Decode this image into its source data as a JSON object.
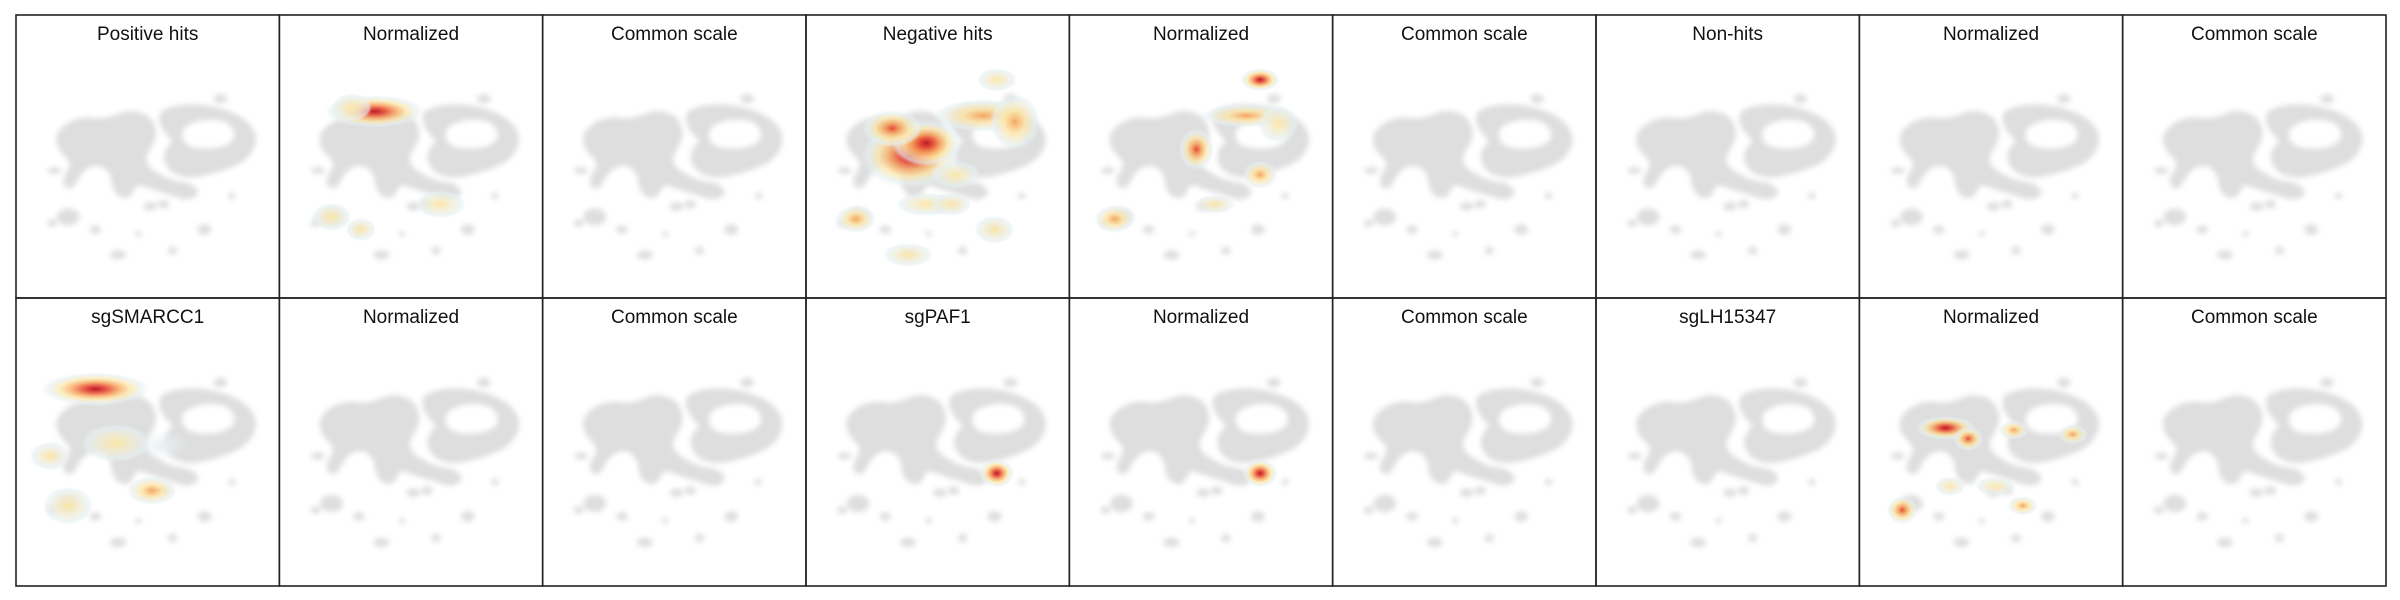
{
  "chart_data": {
    "type": "heatmap",
    "description_units": "normalized embedding coordinates (0-1, origin top-left of each panel)",
    "colormap": [
      "#e6f0f3",
      "#fde6a6",
      "#f6a45c",
      "#e6452d",
      "#b5101e"
    ],
    "background_color": "#dedede",
    "panels": [
      {
        "title": "Positive hits",
        "hotspots": []
      },
      {
        "title": "Normalized",
        "hotspots": [
          {
            "x": 0.34,
            "y": 0.22,
            "sx": 0.1,
            "sy": 0.035,
            "v": 1.0
          },
          {
            "x": 0.24,
            "y": 0.2,
            "sx": 0.04,
            "sy": 0.03,
            "v": 0.35
          },
          {
            "x": 0.15,
            "y": 0.72,
            "sx": 0.04,
            "sy": 0.03,
            "v": 0.35
          },
          {
            "x": 0.63,
            "y": 0.66,
            "sx": 0.05,
            "sy": 0.03,
            "v": 0.2
          },
          {
            "x": 0.28,
            "y": 0.78,
            "sx": 0.03,
            "sy": 0.025,
            "v": 0.15
          }
        ]
      },
      {
        "title": "Common scale",
        "hotspots": []
      },
      {
        "title": "Negative hits",
        "hotspots": [
          {
            "x": 0.38,
            "y": 0.43,
            "sx": 0.1,
            "sy": 0.07,
            "v": 0.9
          },
          {
            "x": 0.45,
            "y": 0.37,
            "sx": 0.07,
            "sy": 0.05,
            "v": 1.0
          },
          {
            "x": 0.3,
            "y": 0.3,
            "sx": 0.06,
            "sy": 0.04,
            "v": 0.7
          },
          {
            "x": 0.7,
            "y": 0.24,
            "sx": 0.1,
            "sy": 0.035,
            "v": 0.55
          },
          {
            "x": 0.84,
            "y": 0.27,
            "sx": 0.05,
            "sy": 0.06,
            "v": 0.45
          },
          {
            "x": 0.58,
            "y": 0.52,
            "sx": 0.05,
            "sy": 0.03,
            "v": 0.35
          },
          {
            "x": 0.45,
            "y": 0.66,
            "sx": 0.06,
            "sy": 0.025,
            "v": 0.3
          },
          {
            "x": 0.14,
            "y": 0.73,
            "sx": 0.04,
            "sy": 0.03,
            "v": 0.45
          },
          {
            "x": 0.76,
            "y": 0.07,
            "sx": 0.04,
            "sy": 0.025,
            "v": 0.25
          },
          {
            "x": 0.56,
            "y": 0.66,
            "sx": 0.04,
            "sy": 0.025,
            "v": 0.3
          },
          {
            "x": 0.37,
            "y": 0.9,
            "sx": 0.05,
            "sy": 0.025,
            "v": 0.2
          },
          {
            "x": 0.75,
            "y": 0.78,
            "sx": 0.04,
            "sy": 0.03,
            "v": 0.15
          }
        ]
      },
      {
        "title": "Normalized",
        "hotspots": [
          {
            "x": 0.76,
            "y": 0.07,
            "sx": 0.04,
            "sy": 0.025,
            "v": 1.0
          },
          {
            "x": 0.48,
            "y": 0.4,
            "sx": 0.035,
            "sy": 0.045,
            "v": 0.75
          },
          {
            "x": 0.76,
            "y": 0.52,
            "sx": 0.035,
            "sy": 0.03,
            "v": 0.6
          },
          {
            "x": 0.7,
            "y": 0.24,
            "sx": 0.09,
            "sy": 0.025,
            "v": 0.4
          },
          {
            "x": 0.12,
            "y": 0.73,
            "sx": 0.04,
            "sy": 0.03,
            "v": 0.45
          },
          {
            "x": 0.84,
            "y": 0.28,
            "sx": 0.04,
            "sy": 0.04,
            "v": 0.3
          },
          {
            "x": 0.56,
            "y": 0.66,
            "sx": 0.04,
            "sy": 0.02,
            "v": 0.2
          }
        ]
      },
      {
        "title": "Common scale",
        "hotspots": []
      },
      {
        "title": "Non-hits",
        "hotspots": []
      },
      {
        "title": "Normalized",
        "hotspots": []
      },
      {
        "title": "Common scale",
        "hotspots": []
      },
      {
        "title": "sgSMARCC1",
        "hotspots": [
          {
            "x": 0.27,
            "y": 0.19,
            "sx": 0.11,
            "sy": 0.035,
            "v": 1.0
          },
          {
            "x": 0.52,
            "y": 0.66,
            "sx": 0.05,
            "sy": 0.03,
            "v": 0.55
          },
          {
            "x": 0.15,
            "y": 0.73,
            "sx": 0.05,
            "sy": 0.04,
            "v": 0.25
          },
          {
            "x": 0.07,
            "y": 0.5,
            "sx": 0.04,
            "sy": 0.03,
            "v": 0.2
          },
          {
            "x": 0.36,
            "y": 0.44,
            "sx": 0.07,
            "sy": 0.04,
            "v": 0.15
          },
          {
            "x": 0.57,
            "y": 0.45,
            "sx": 0.05,
            "sy": 0.03,
            "v": 0.1
          }
        ]
      },
      {
        "title": "Normalized",
        "hotspots": []
      },
      {
        "title": "Common scale",
        "hotspots": []
      },
      {
        "title": "sgPAF1",
        "hotspots": [
          {
            "x": 0.76,
            "y": 0.58,
            "sx": 0.035,
            "sy": 0.03,
            "v": 1.0
          }
        ]
      },
      {
        "title": "Normalized",
        "hotspots": [
          {
            "x": 0.76,
            "y": 0.58,
            "sx": 0.035,
            "sy": 0.03,
            "v": 1.0
          }
        ]
      },
      {
        "title": "Common scale",
        "hotspots": []
      },
      {
        "title": "sgLH15347",
        "hotspots": []
      },
      {
        "title": "Normalized",
        "hotspots": [
          {
            "x": 0.3,
            "y": 0.37,
            "sx": 0.06,
            "sy": 0.025,
            "v": 0.95
          },
          {
            "x": 0.4,
            "y": 0.42,
            "sx": 0.03,
            "sy": 0.025,
            "v": 0.85
          },
          {
            "x": 0.6,
            "y": 0.38,
            "sx": 0.03,
            "sy": 0.02,
            "v": 0.5
          },
          {
            "x": 0.86,
            "y": 0.4,
            "sx": 0.03,
            "sy": 0.02,
            "v": 0.45
          },
          {
            "x": 0.11,
            "y": 0.75,
            "sx": 0.03,
            "sy": 0.03,
            "v": 0.8
          },
          {
            "x": 0.32,
            "y": 0.64,
            "sx": 0.03,
            "sy": 0.02,
            "v": 0.35
          },
          {
            "x": 0.52,
            "y": 0.64,
            "sx": 0.04,
            "sy": 0.02,
            "v": 0.35
          },
          {
            "x": 0.64,
            "y": 0.73,
            "sx": 0.03,
            "sy": 0.02,
            "v": 0.4
          }
        ]
      },
      {
        "title": "Common scale",
        "hotspots": []
      }
    ]
  }
}
